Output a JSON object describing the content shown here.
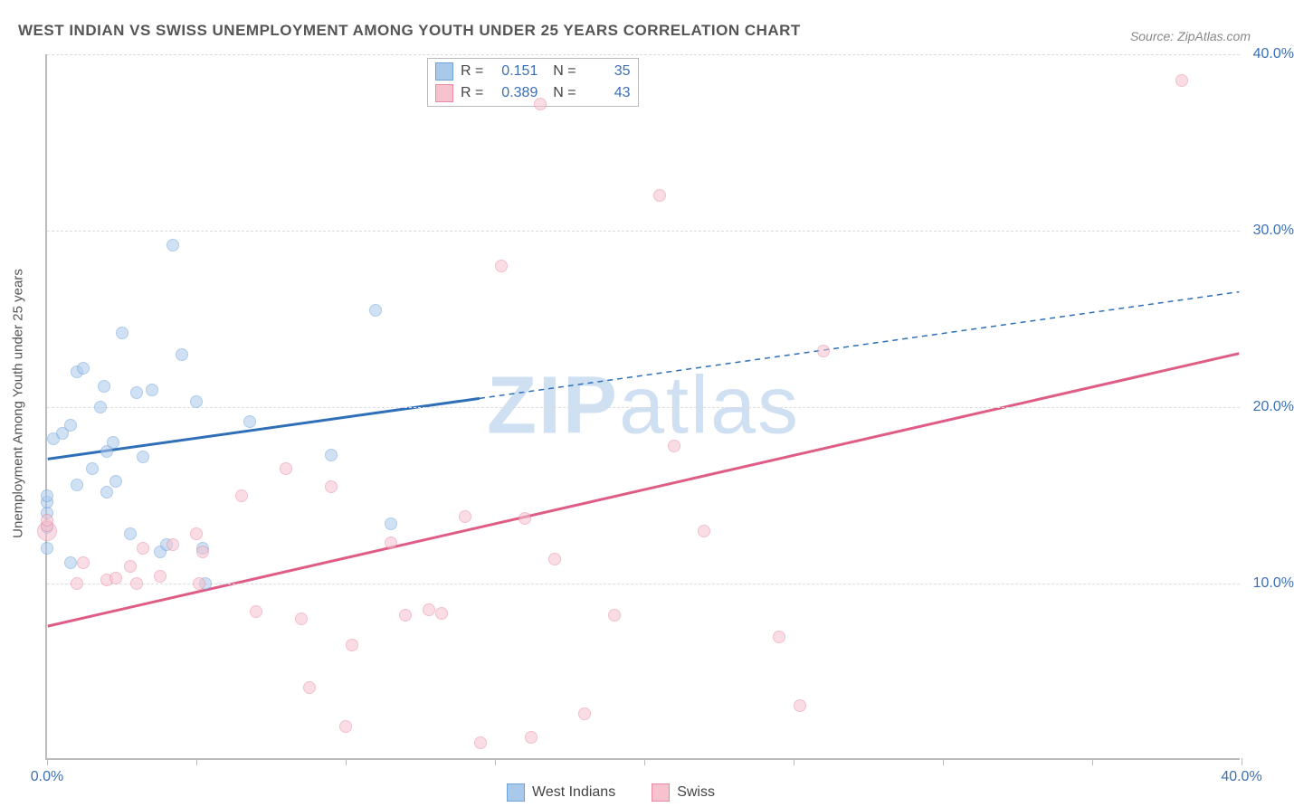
{
  "title": "WEST INDIAN VS SWISS UNEMPLOYMENT AMONG YOUTH UNDER 25 YEARS CORRELATION CHART",
  "title_fontsize": 17,
  "source": "Source: ZipAtlas.com",
  "watermark": "ZIPatlas",
  "ylabel": "Unemployment Among Youth under 25 years",
  "chart": {
    "type": "scatter",
    "xlim": [
      0,
      40
    ],
    "ylim": [
      0,
      40
    ],
    "x_ticks": [
      0,
      5,
      10,
      15,
      20,
      25,
      30,
      35,
      40
    ],
    "y_ticks": [
      10,
      20,
      30,
      40
    ],
    "x_tick_labels": {
      "0": "0.0%",
      "40": "40.0%"
    },
    "y_tick_labels": {
      "10": "10.0%",
      "20": "20.0%",
      "30": "30.0%",
      "40": "40.0%"
    },
    "background_color": "#ffffff",
    "grid_color": "#dddddd",
    "axis_color": "#bbbbbb",
    "tick_label_color": "#3b6fb6"
  },
  "series": [
    {
      "name": "West Indians",
      "color_fill": "#a9c9ea",
      "color_stroke": "#6ea3d9",
      "marker_size": 14,
      "fill_opacity": 0.55,
      "trend": {
        "x1": 0,
        "y1": 17.0,
        "x2": 40,
        "y2": 26.5,
        "solid_until_x": 14.5,
        "color": "#2f6fb8",
        "width": 3
      },
      "stats": {
        "R": "0.151",
        "N": "35"
      },
      "points": [
        [
          0.0,
          12.0
        ],
        [
          0.0,
          13.2
        ],
        [
          0.0,
          14.0
        ],
        [
          0.0,
          14.6
        ],
        [
          0.0,
          15.0
        ],
        [
          0.2,
          18.2
        ],
        [
          0.5,
          18.5
        ],
        [
          0.8,
          11.2
        ],
        [
          0.8,
          19.0
        ],
        [
          1.0,
          15.6
        ],
        [
          1.0,
          22.0
        ],
        [
          1.2,
          22.2
        ],
        [
          1.5,
          16.5
        ],
        [
          1.8,
          20.0
        ],
        [
          1.9,
          21.2
        ],
        [
          2.0,
          15.2
        ],
        [
          2.0,
          17.5
        ],
        [
          2.2,
          18.0
        ],
        [
          2.3,
          15.8
        ],
        [
          2.5,
          24.2
        ],
        [
          2.8,
          12.8
        ],
        [
          3.0,
          20.8
        ],
        [
          3.2,
          17.2
        ],
        [
          3.5,
          21.0
        ],
        [
          3.8,
          11.8
        ],
        [
          4.0,
          12.2
        ],
        [
          4.2,
          29.2
        ],
        [
          4.5,
          23.0
        ],
        [
          5.0,
          20.3
        ],
        [
          5.2,
          12.0
        ],
        [
          5.3,
          10.0
        ],
        [
          6.8,
          19.2
        ],
        [
          9.5,
          17.3
        ],
        [
          11.0,
          25.5
        ],
        [
          11.5,
          13.4
        ]
      ]
    },
    {
      "name": "Swiss",
      "color_fill": "#f6c2ce",
      "color_stroke": "#e98aa4",
      "marker_size": 14,
      "fill_opacity": 0.55,
      "trend": {
        "x1": 0,
        "y1": 7.5,
        "x2": 40,
        "y2": 23.0,
        "solid_until_x": 40,
        "color": "#df5d85",
        "width": 3
      },
      "stats": {
        "R": "0.389",
        "N": "43"
      },
      "points": [
        [
          0.0,
          13.0,
          22
        ],
        [
          0.0,
          13.3
        ],
        [
          0.0,
          13.6
        ],
        [
          1.0,
          10.0
        ],
        [
          1.2,
          11.2
        ],
        [
          2.0,
          10.2
        ],
        [
          2.3,
          10.3
        ],
        [
          2.8,
          11.0
        ],
        [
          3.0,
          10.0
        ],
        [
          3.2,
          12.0
        ],
        [
          3.8,
          10.4
        ],
        [
          4.2,
          12.2
        ],
        [
          5.0,
          12.8
        ],
        [
          5.1,
          10.0
        ],
        [
          5.2,
          11.8
        ],
        [
          6.5,
          15.0
        ],
        [
          7.0,
          8.4
        ],
        [
          8.0,
          16.5
        ],
        [
          8.5,
          8.0
        ],
        [
          8.8,
          4.1
        ],
        [
          9.5,
          15.5
        ],
        [
          10.0,
          1.9
        ],
        [
          10.2,
          6.5
        ],
        [
          11.5,
          12.3
        ],
        [
          12.0,
          8.2
        ],
        [
          12.8,
          8.5
        ],
        [
          13.2,
          8.3
        ],
        [
          14.0,
          13.8
        ],
        [
          14.5,
          1.0
        ],
        [
          15.2,
          28.0
        ],
        [
          16.0,
          13.7
        ],
        [
          16.2,
          1.3
        ],
        [
          16.5,
          37.2
        ],
        [
          17.0,
          11.4
        ],
        [
          18.0,
          2.6
        ],
        [
          19.0,
          8.2
        ],
        [
          20.5,
          32.0
        ],
        [
          21.0,
          17.8
        ],
        [
          22.0,
          13.0
        ],
        [
          24.5,
          7.0
        ],
        [
          25.2,
          3.1
        ],
        [
          26.0,
          23.2
        ],
        [
          38.0,
          38.5
        ]
      ]
    }
  ],
  "legend": {
    "items": [
      {
        "label": "West Indians",
        "fill": "#a9c9ea",
        "stroke": "#6ea3d9"
      },
      {
        "label": "Swiss",
        "fill": "#f6c2ce",
        "stroke": "#e98aa4"
      }
    ]
  }
}
